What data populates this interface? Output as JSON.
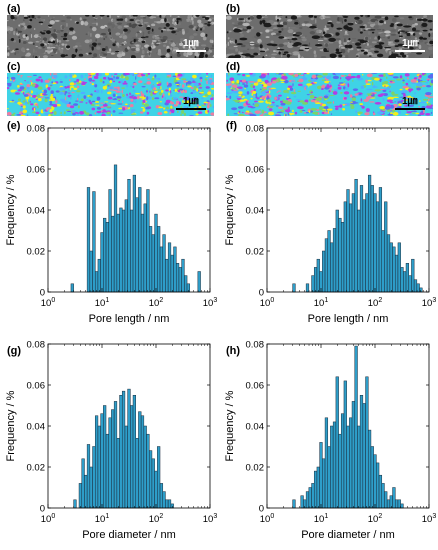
{
  "panels": {
    "images": [
      {
        "label": "(a)",
        "scale_text": "1㎛",
        "kind": "sem"
      },
      {
        "label": "(b)",
        "scale_text": "1㎛",
        "kind": "sem"
      },
      {
        "label": "(c)",
        "scale_text": "1㎛",
        "kind": "map"
      },
      {
        "label": "(d)",
        "scale_text": "1㎛",
        "kind": "map"
      }
    ],
    "colors": {
      "bar_fill": "#2e9ec9",
      "bar_edge": "#1a2a3a",
      "map_base": "#3fd3e6",
      "map_palette": [
        "#f2ee1c",
        "#b23fe3",
        "#5a6cf0",
        "#e87fa3",
        "#7cd36a",
        "#4fb0ff"
      ]
    }
  },
  "chart_data": [
    {
      "panel": "(e)",
      "type": "bar",
      "xscale": "log",
      "xlim": [
        1,
        1000
      ],
      "ylim": [
        0,
        0.08
      ],
      "xlabel": "Pore length / nm",
      "ylabel": "Frequency / %",
      "xticks": [
        "10^0",
        "10^1",
        "10^2",
        "10^3"
      ],
      "yticks": [
        "0",
        "0.02",
        "0.04",
        "0.06",
        "0.08"
      ],
      "x": [
        2.82,
        5.62,
        6.31,
        7.08,
        7.94,
        8.91,
        10.0,
        11.2,
        12.6,
        14.1,
        15.8,
        17.8,
        20.0,
        22.4,
        25.1,
        28.2,
        31.6,
        35.5,
        39.8,
        44.7,
        50.1,
        56.2,
        63.1,
        70.8,
        79.4,
        89.1,
        100,
        112,
        126,
        141,
        158,
        178,
        200,
        224,
        251,
        282,
        316,
        355,
        398,
        631
      ],
      "values": [
        0.004,
        0.051,
        0.02,
        0.049,
        0.01,
        0.016,
        0.029,
        0.036,
        0.034,
        0.05,
        0.037,
        0.062,
        0.038,
        0.041,
        0.04,
        0.045,
        0.055,
        0.04,
        0.057,
        0.046,
        0.051,
        0.038,
        0.043,
        0.05,
        0.032,
        0.028,
        0.038,
        0.032,
        0.022,
        0.028,
        0.016,
        0.024,
        0.018,
        0.022,
        0.014,
        0.012,
        0.016,
        0.008,
        0.004,
        0.01
      ]
    },
    {
      "panel": "(f)",
      "type": "bar",
      "xscale": "log",
      "xlim": [
        1,
        1000
      ],
      "ylim": [
        0,
        0.08
      ],
      "xlabel": "Pore length / nm",
      "ylabel": "Frequency / %",
      "xticks": [
        "10^0",
        "10^1",
        "10^2",
        "10^3"
      ],
      "yticks": [
        "0",
        "0.02",
        "0.04",
        "0.06",
        "0.08"
      ],
      "x": [
        3.16,
        5.62,
        7.08,
        7.94,
        8.91,
        10.0,
        11.2,
        12.6,
        14.1,
        15.8,
        17.8,
        20.0,
        22.4,
        25.1,
        28.2,
        31.6,
        35.5,
        39.8,
        44.7,
        50.1,
        56.2,
        63.1,
        70.8,
        79.4,
        89.1,
        100,
        112,
        126,
        141,
        158,
        178,
        200,
        224,
        251,
        282,
        316,
        355,
        398,
        447,
        501,
        562,
        631,
        708
      ],
      "values": [
        0.004,
        0.004,
        0.008,
        0.012,
        0.016,
        0.01,
        0.02,
        0.026,
        0.03,
        0.024,
        0.031,
        0.04,
        0.036,
        0.034,
        0.044,
        0.05,
        0.043,
        0.048,
        0.055,
        0.04,
        0.052,
        0.045,
        0.048,
        0.057,
        0.052,
        0.048,
        0.044,
        0.051,
        0.03,
        0.044,
        0.028,
        0.024,
        0.022,
        0.018,
        0.024,
        0.012,
        0.01,
        0.014,
        0.008,
        0.016,
        0.006,
        0.004,
        0.002
      ]
    },
    {
      "panel": "(g)",
      "type": "bar",
      "xscale": "log",
      "xlim": [
        1,
        1000
      ],
      "ylim": [
        0,
        0.08
      ],
      "xlabel": "Pore diameter / nm",
      "ylabel": "Frequency / %",
      "xticks": [
        "10^0",
        "10^1",
        "10^2",
        "10^3"
      ],
      "yticks": [
        "0",
        "0.02",
        "0.04",
        "0.06",
        "0.08"
      ],
      "x": [
        3.16,
        3.98,
        4.47,
        5.01,
        5.62,
        6.31,
        7.08,
        7.94,
        8.91,
        10.0,
        11.2,
        12.6,
        14.1,
        15.8,
        17.8,
        20.0,
        22.4,
        25.1,
        28.2,
        31.6,
        35.5,
        39.8,
        44.7,
        50.1,
        56.2,
        63.1,
        70.8,
        79.4,
        89.1,
        100,
        112,
        126,
        141,
        158,
        178,
        200
      ],
      "values": [
        0.004,
        0.012,
        0.024,
        0.016,
        0.031,
        0.02,
        0.03,
        0.045,
        0.04,
        0.046,
        0.05,
        0.036,
        0.044,
        0.048,
        0.052,
        0.034,
        0.055,
        0.057,
        0.04,
        0.058,
        0.05,
        0.055,
        0.034,
        0.047,
        0.045,
        0.04,
        0.036,
        0.028,
        0.024,
        0.018,
        0.03,
        0.012,
        0.008,
        0.004,
        0.004,
        0.002
      ]
    },
    {
      "panel": "(h)",
      "type": "bar",
      "xscale": "log",
      "xlim": [
        1,
        1000
      ],
      "ylim": [
        0,
        0.08
      ],
      "xlabel": "Pore diameter / nm",
      "ylabel": "Frequency / %",
      "xticks": [
        "10^0",
        "10^1",
        "10^2",
        "10^3"
      ],
      "yticks": [
        "0",
        "0.02",
        "0.04",
        "0.06",
        "0.08"
      ],
      "x": [
        3.16,
        4.47,
        5.01,
        5.62,
        6.31,
        7.08,
        7.94,
        8.91,
        10.0,
        11.2,
        12.6,
        14.1,
        15.8,
        17.8,
        20.0,
        22.4,
        25.1,
        28.2,
        31.6,
        35.5,
        39.8,
        44.7,
        50.1,
        56.2,
        63.1,
        70.8,
        79.4,
        89.1,
        100,
        112,
        126,
        141,
        158,
        178,
        200,
        224,
        251,
        282,
        316
      ],
      "values": [
        0.004,
        0.006,
        0.004,
        0.008,
        0.01,
        0.012,
        0.018,
        0.02,
        0.032,
        0.024,
        0.044,
        0.03,
        0.04,
        0.042,
        0.064,
        0.036,
        0.046,
        0.062,
        0.04,
        0.044,
        0.052,
        0.079,
        0.04,
        0.055,
        0.051,
        0.064,
        0.038,
        0.03,
        0.026,
        0.022,
        0.016,
        0.012,
        0.008,
        0.004,
        0.006,
        0.01,
        0.004,
        0.004,
        0.002
      ]
    }
  ]
}
